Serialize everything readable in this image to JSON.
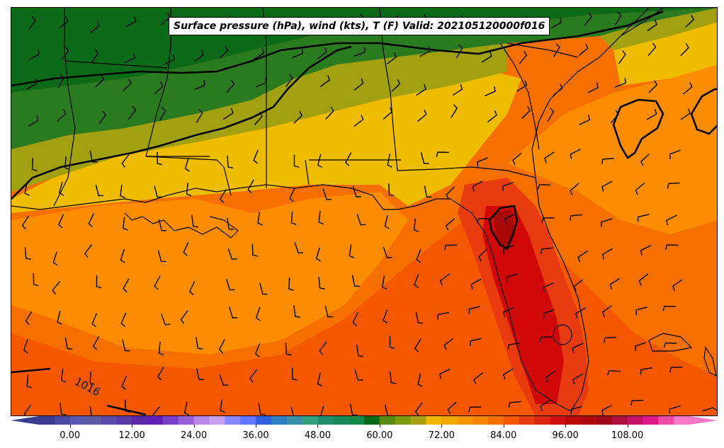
{
  "title": "Surface pressure (hPa), wind (kts), T (F) Valid: 202105120000f016",
  "contour_labels": [
    {
      "text": "1016"
    }
  ],
  "colorbar": {
    "min": -6,
    "max": 120,
    "step": 3,
    "tick_labels": [
      "0.00",
      "12.00",
      "24.00",
      "36.00",
      "48.00",
      "60.00",
      "72.00",
      "84.00",
      "96.00",
      "108.00"
    ],
    "colors": [
      "#3b3b8f",
      "#4a4aa0",
      "#5a5ab0",
      "#5e5aa8",
      "#5a4aa8",
      "#5a3aa8",
      "#5a28a8",
      "#6020b8",
      "#7a40c8",
      "#9a60d8",
      "#b888e8",
      "#c8a0f0",
      "#8888ff",
      "#6078ff",
      "#3060e0",
      "#3080c0",
      "#3a90a8",
      "#30a080",
      "#20906a",
      "#1a8a58",
      "#138a48",
      "#0a6a18",
      "#5a8a10",
      "#7a9a10",
      "#a8a010",
      "#f0b800",
      "#f0a800",
      "#f59800",
      "#f58400",
      "#f57000",
      "#f55800",
      "#e83c10",
      "#dc2810",
      "#d01010",
      "#c00808",
      "#b00810",
      "#a00818",
      "#b01040",
      "#c81468",
      "#e01888",
      "#f04aa8",
      "#f878c8"
    ]
  },
  "legend_colors": {
    "dark_green": "#0a6a18",
    "green": "#2a7a20",
    "olive": "#a0a010",
    "yellow": "#f0bc00",
    "orange": "#fc8c00",
    "dark_orange": "#f55800",
    "red_orange": "#e83c10",
    "red": "#d00808",
    "dark_red": "#a80808"
  }
}
